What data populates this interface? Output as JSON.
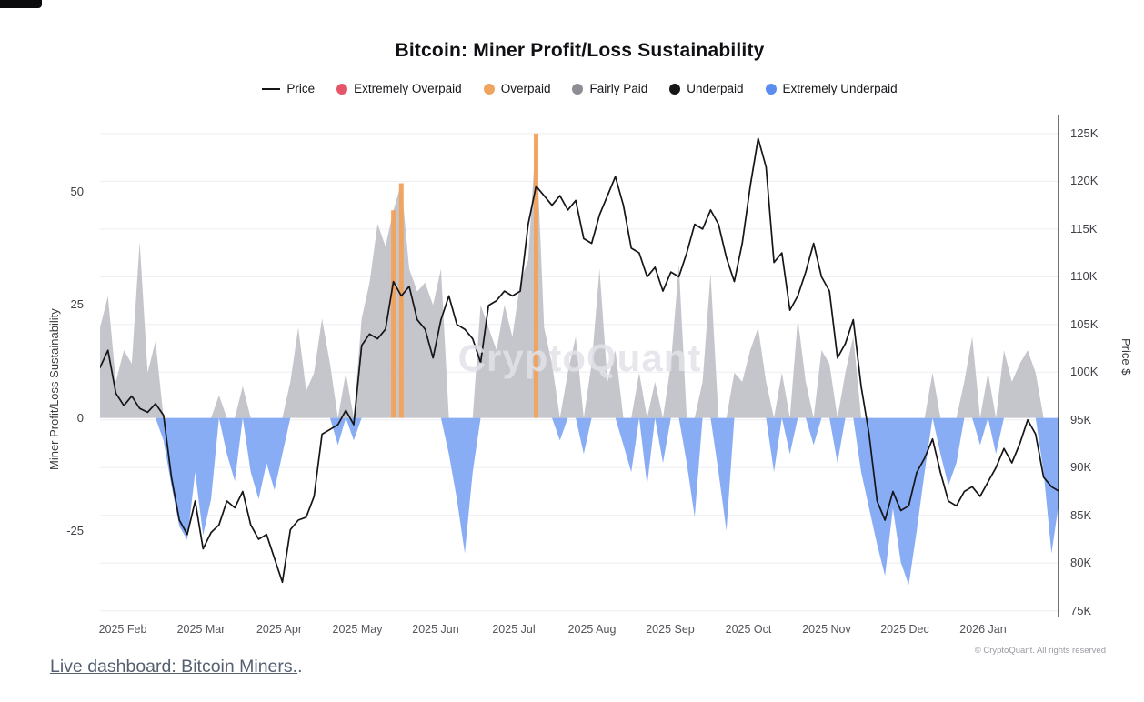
{
  "header": {
    "title": "Bitcoin: Miner Profit/Loss Sustainability"
  },
  "watermark": "CryptoQuant",
  "legend": {
    "items": [
      {
        "label": "Price",
        "type": "line",
        "color": "#15151a"
      },
      {
        "label": "Extremely Overpaid",
        "type": "dot",
        "color": "#e4556a"
      },
      {
        "label": "Overpaid",
        "type": "dot",
        "color": "#f0a35e"
      },
      {
        "label": "Fairly Paid",
        "type": "dot",
        "color": "#8d8d96"
      },
      {
        "label": "Underpaid",
        "type": "dot",
        "color": "#17171a"
      },
      {
        "label": "Extremely Underpaid",
        "type": "dot",
        "color": "#5b8cf0"
      }
    ]
  },
  "axes": {
    "left_label": "Miner Profit/Loss Sustainability",
    "right_label": "Price $",
    "left_ticks": [
      50,
      25,
      0,
      -25
    ],
    "right_ticks": [
      "125K",
      "120K",
      "115K",
      "110K",
      "105K",
      "100K",
      "95K",
      "90K",
      "85K",
      "80K",
      "75K"
    ],
    "x_ticks": [
      "2025 Feb",
      "2025 Mar",
      "2025 Apr",
      "2025 May",
      "2025 Jun",
      "2025 Jul",
      "2025 Aug",
      "2025 Sep",
      "2025 Oct",
      "2025 Nov",
      "2025 Dec",
      "2026 Jan"
    ]
  },
  "footer": {
    "copyright": "© CryptoQuant. All rights reserved",
    "link": "Live dashboard: Bitcoin Miners.",
    "link_suffix": "."
  },
  "chart_data": {
    "type": "bar+line",
    "title": "Bitcoin: Miner Profit/Loss Sustainability",
    "legend_position": "top",
    "grid": true,
    "x": [
      "2025-01-30",
      "2025-02-02",
      "2025-02-05",
      "2025-02-08",
      "2025-02-11",
      "2025-02-14",
      "2025-02-17",
      "2025-02-20",
      "2025-02-23",
      "2025-02-26",
      "2025-03-01",
      "2025-03-04",
      "2025-03-07",
      "2025-03-10",
      "2025-03-13",
      "2025-03-16",
      "2025-03-19",
      "2025-03-22",
      "2025-03-25",
      "2025-03-28",
      "2025-03-31",
      "2025-04-03",
      "2025-04-06",
      "2025-04-09",
      "2025-04-12",
      "2025-04-15",
      "2025-04-18",
      "2025-04-21",
      "2025-04-24",
      "2025-04-27",
      "2025-04-30",
      "2025-05-03",
      "2025-05-06",
      "2025-05-09",
      "2025-05-12",
      "2025-05-15",
      "2025-05-18",
      "2025-05-21",
      "2025-05-24",
      "2025-05-27",
      "2025-05-30",
      "2025-06-02",
      "2025-06-05",
      "2025-06-08",
      "2025-06-11",
      "2025-06-14",
      "2025-06-17",
      "2025-06-20",
      "2025-06-23",
      "2025-06-26",
      "2025-06-29",
      "2025-07-02",
      "2025-07-05",
      "2025-07-08",
      "2025-07-11",
      "2025-07-14",
      "2025-07-17",
      "2025-07-20",
      "2025-07-23",
      "2025-07-26",
      "2025-07-29",
      "2025-08-01",
      "2025-08-04",
      "2025-08-07",
      "2025-08-10",
      "2025-08-13",
      "2025-08-16",
      "2025-08-19",
      "2025-08-22",
      "2025-08-25",
      "2025-08-28",
      "2025-08-31",
      "2025-09-03",
      "2025-09-06",
      "2025-09-09",
      "2025-09-12",
      "2025-09-15",
      "2025-09-18",
      "2025-09-21",
      "2025-09-24",
      "2025-09-27",
      "2025-09-30",
      "2025-10-03",
      "2025-10-06",
      "2025-10-09",
      "2025-10-12",
      "2025-10-15",
      "2025-10-18",
      "2025-10-21",
      "2025-10-24",
      "2025-10-27",
      "2025-10-30",
      "2025-11-02",
      "2025-11-05",
      "2025-11-08",
      "2025-11-11",
      "2025-11-14",
      "2025-11-17",
      "2025-11-20",
      "2025-11-23",
      "2025-11-26",
      "2025-11-29",
      "2025-12-02",
      "2025-12-05",
      "2025-12-08",
      "2025-12-11",
      "2025-12-14",
      "2025-12-17",
      "2025-12-20",
      "2025-12-23",
      "2025-12-26",
      "2025-12-29",
      "2026-01-01",
      "2026-01-04",
      "2026-01-07",
      "2026-01-10",
      "2026-01-13",
      "2026-01-16",
      "2026-01-19",
      "2026-01-22",
      "2026-01-25",
      "2026-01-28"
    ],
    "series": [
      {
        "name": "Miner Profit/Loss Sustainability",
        "render": "bar",
        "axis": "left",
        "values": [
          20,
          27,
          8,
          15,
          12,
          39,
          10,
          17,
          -5,
          -15,
          -24,
          -27,
          -12,
          -26,
          -18,
          5,
          -8,
          -14,
          7,
          -12,
          -18,
          -10,
          -16,
          -8,
          8,
          20,
          6,
          10,
          22,
          12,
          -6,
          10,
          -5,
          22,
          30,
          43,
          38,
          46,
          52,
          33,
          28,
          30,
          25,
          33,
          -8,
          -18,
          -30,
          -12,
          25,
          20,
          15,
          25,
          18,
          30,
          35,
          63,
          20,
          12,
          -5,
          10,
          18,
          -8,
          12,
          33,
          8,
          15,
          -6,
          -12,
          10,
          -15,
          8,
          -10,
          12,
          34,
          -10,
          -22,
          8,
          32,
          -12,
          -25,
          10,
          8,
          15,
          20,
          8,
          -12,
          10,
          -8,
          22,
          8,
          -6,
          15,
          12,
          -10,
          10,
          18,
          -12,
          -20,
          -28,
          -35,
          -20,
          -32,
          -37,
          -25,
          -12,
          10,
          -8,
          -15,
          -10,
          8,
          18,
          -6,
          10,
          -8,
          15,
          8,
          12,
          15,
          10,
          -12,
          -30,
          -18
        ],
        "category_per_point": [
          "F",
          "F",
          "F",
          "F",
          "F",
          "F",
          "F",
          "F",
          "EU",
          "EU",
          "EU",
          "EU",
          "EU",
          "EU",
          "EU",
          "F",
          "EU",
          "EU",
          "F",
          "EU",
          "EU",
          "EU",
          "EU",
          "EU",
          "F",
          "F",
          "F",
          "F",
          "F",
          "F",
          "EU",
          "F",
          "EU",
          "F",
          "F",
          "F",
          "F",
          "O",
          "O",
          "F",
          "F",
          "F",
          "F",
          "F",
          "EU",
          "EU",
          "EU",
          "EU",
          "F",
          "F",
          "F",
          "F",
          "F",
          "F",
          "F",
          "O",
          "F",
          "F",
          "EU",
          "F",
          "F",
          "EU",
          "F",
          "F",
          "F",
          "F",
          "EU",
          "EU",
          "F",
          "EU",
          "F",
          "EU",
          "F",
          "F",
          "EU",
          "EU",
          "F",
          "F",
          "EU",
          "EU",
          "F",
          "F",
          "F",
          "F",
          "F",
          "EU",
          "F",
          "EU",
          "F",
          "F",
          "EU",
          "F",
          "F",
          "EU",
          "F",
          "F",
          "EU",
          "EU",
          "EU",
          "EU",
          "EU",
          "EU",
          "EU",
          "EU",
          "EU",
          "F",
          "EU",
          "EU",
          "EU",
          "F",
          "F",
          "EU",
          "F",
          "EU",
          "F",
          "F",
          "F",
          "F",
          "F",
          "EU",
          "EU",
          "EU"
        ],
        "category_legend": {
          "F": "Fairly Paid",
          "O": "Overpaid",
          "EU": "Extremely Underpaid",
          "EO": "Extremely Overpaid",
          "U": "Underpaid"
        }
      },
      {
        "name": "Price",
        "render": "line",
        "axis": "right",
        "unit": "K USD",
        "values": [
          100.5,
          102.3,
          97.8,
          96.5,
          97.5,
          96.2,
          95.8,
          96.7,
          95.5,
          89.0,
          84.5,
          83.0,
          86.5,
          81.5,
          83.2,
          84.0,
          86.5,
          85.8,
          87.5,
          84.0,
          82.5,
          83.0,
          80.5,
          78.0,
          83.5,
          84.5,
          84.8,
          87.0,
          93.5,
          94.0,
          94.5,
          96.0,
          94.5,
          102.8,
          104.0,
          103.5,
          104.5,
          109.5,
          108.0,
          109.0,
          105.5,
          104.5,
          101.5,
          105.5,
          108.0,
          105.0,
          104.5,
          103.5,
          101.0,
          107.0,
          107.5,
          108.5,
          108.0,
          108.5,
          115.5,
          119.5,
          118.5,
          117.5,
          118.5,
          117.0,
          118.0,
          114.0,
          113.5,
          116.5,
          118.5,
          120.5,
          117.5,
          113.0,
          112.5,
          110.0,
          111.0,
          108.5,
          110.5,
          110.0,
          112.5,
          115.5,
          115.0,
          117.0,
          115.5,
          112.0,
          109.5,
          113.5,
          119.5,
          124.5,
          121.5,
          111.5,
          112.5,
          106.5,
          108.0,
          110.5,
          113.5,
          110.0,
          108.5,
          101.5,
          103.0,
          105.5,
          98.5,
          93.5,
          86.5,
          84.5,
          87.5,
          85.5,
          86.0,
          89.5,
          91.0,
          93.0,
          89.5,
          86.5,
          86.0,
          87.5,
          88.0,
          87.0,
          88.5,
          90.0,
          92.0,
          90.5,
          92.5,
          95.0,
          93.5,
          89.0,
          88.0,
          87.5
        ]
      }
    ],
    "left_axis": {
      "label": "Miner Profit/Loss Sustainability",
      "ticks": [
        50,
        25,
        0,
        -25
      ],
      "range": [
        -44,
        67
      ]
    },
    "right_axis": {
      "label": "Price $",
      "ticks_k": [
        125,
        120,
        115,
        110,
        105,
        100,
        95,
        90,
        85,
        80,
        75
      ],
      "range_k": [
        74.4,
        126.9
      ]
    },
    "x_axis": {
      "tick_labels": [
        "2025 Feb",
        "2025 Mar",
        "2025 Apr",
        "2025 May",
        "2025 Jun",
        "2025 Jul",
        "2025 Aug",
        "2025 Sep",
        "2025 Oct",
        "2025 Nov",
        "2025 Dec",
        "2026 Jan"
      ]
    },
    "colors": {
      "price_line": "#15151a",
      "fairly_paid": "#bdbdc5",
      "overpaid": "#f2a25c",
      "extremely_overpaid": "#e4556a",
      "underpaid": "#17171a",
      "extremely_underpaid": "#7fa6f3",
      "grid": "#ededf1",
      "axis_spine": "#15151a"
    }
  }
}
